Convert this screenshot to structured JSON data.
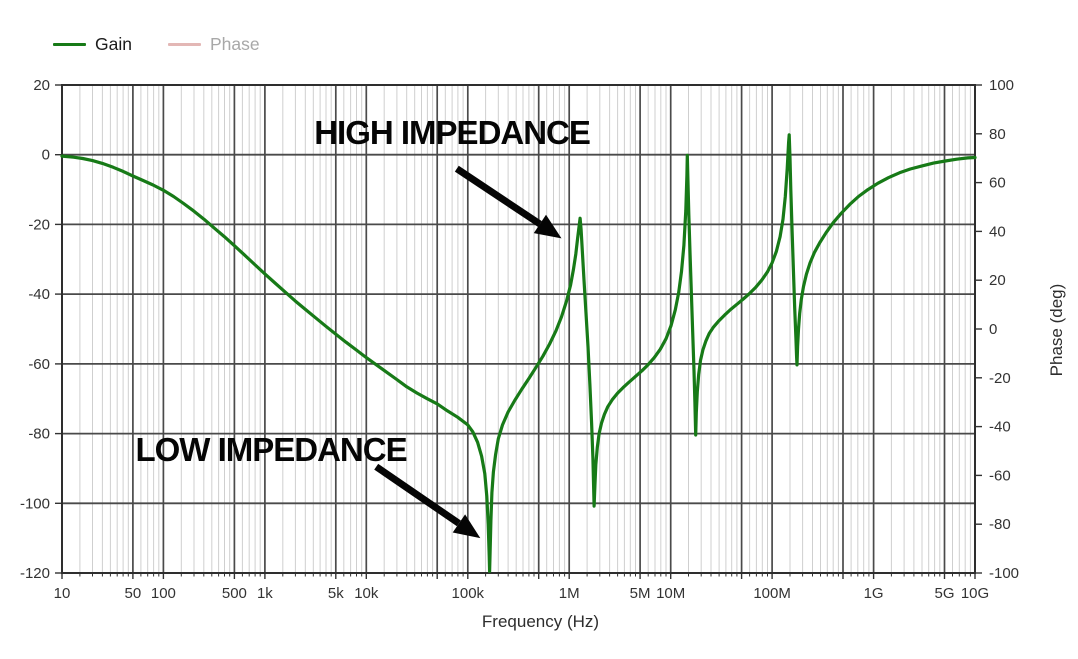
{
  "chart_data": {
    "type": "line",
    "title": "",
    "xlabel": "Frequency (Hz)",
    "ylabel_left": "",
    "ylabel_right": "Phase (deg)",
    "x_scale": "log",
    "xlim": [
      10,
      10000000000
    ],
    "ylim_gain_db": [
      -120,
      20
    ],
    "ylim_phase_deg": [
      -100,
      100
    ],
    "grid": "on",
    "legend": [
      {
        "label": "Gain",
        "color": "#177a17",
        "active": true
      },
      {
        "label": "Phase",
        "color": "#e3b7b5",
        "active": false
      }
    ],
    "legend_inactive_text_color": "#a8a8a8",
    "phase_axis_color": "#b25b52",
    "x_ticks": [
      {
        "v": 10,
        "label": "10"
      },
      {
        "v": 50,
        "label": "50"
      },
      {
        "v": 100,
        "label": "100"
      },
      {
        "v": 500,
        "label": "500"
      },
      {
        "v": 1000,
        "label": "1k"
      },
      {
        "v": 5000,
        "label": "5k"
      },
      {
        "v": 10000,
        "label": "10k"
      },
      {
        "v": 100000,
        "label": "100k"
      },
      {
        "v": 1000000,
        "label": "1M"
      },
      {
        "v": 5000000,
        "label": "5M"
      },
      {
        "v": 10000000,
        "label": "10M"
      },
      {
        "v": 100000000,
        "label": "100M"
      },
      {
        "v": 1000000000,
        "label": "1G"
      },
      {
        "v": 5000000000,
        "label": "5G"
      },
      {
        "v": 10000000000,
        "label": "10G"
      }
    ],
    "gain_ticks_db": [
      20,
      0,
      -20,
      -40,
      -60,
      -80,
      -100,
      -120
    ],
    "phase_ticks_deg": [
      100,
      80,
      60,
      40,
      20,
      0,
      -20,
      -40,
      -60,
      -80,
      -100
    ],
    "series": [
      {
        "name": "Gain",
        "color": "#177a17",
        "visible": true,
        "points_freq_db": [
          [
            10,
            -0.4
          ],
          [
            13,
            -0.7
          ],
          [
            16,
            -1.1
          ],
          [
            20,
            -1.7
          ],
          [
            25,
            -2.5
          ],
          [
            32,
            -3.6
          ],
          [
            40,
            -4.8
          ],
          [
            50,
            -6.1
          ],
          [
            63,
            -7.4
          ],
          [
            79,
            -8.7
          ],
          [
            100,
            -10.2
          ],
          [
            126,
            -12
          ],
          [
            158,
            -14
          ],
          [
            200,
            -16.2
          ],
          [
            251,
            -18.5
          ],
          [
            316,
            -21
          ],
          [
            398,
            -23.5
          ],
          [
            501,
            -26.1
          ],
          [
            631,
            -28.8
          ],
          [
            794,
            -31.5
          ],
          [
            1000,
            -34.2
          ],
          [
            1259,
            -36.8
          ],
          [
            1585,
            -39.4
          ],
          [
            2000,
            -42
          ],
          [
            2512,
            -44.4
          ],
          [
            3162,
            -46.8
          ],
          [
            3981,
            -49.2
          ],
          [
            5012,
            -51.5
          ],
          [
            6310,
            -53.8
          ],
          [
            7943,
            -56
          ],
          [
            10000,
            -58.2
          ],
          [
            12589,
            -60.3
          ],
          [
            15849,
            -62.4
          ],
          [
            19953,
            -64.5
          ],
          [
            25119,
            -66.6
          ],
          [
            31623,
            -68.4
          ],
          [
            39811,
            -70
          ],
          [
            50119,
            -71.5
          ],
          [
            63096,
            -73.5
          ],
          [
            79433,
            -75.3
          ],
          [
            100000,
            -77.5
          ],
          [
            112000,
            -79.5
          ],
          [
            125000,
            -82.5
          ],
          [
            137000,
            -86.5
          ],
          [
            147000,
            -91.5
          ],
          [
            154000,
            -98
          ],
          [
            159000,
            -106
          ],
          [
            162500,
            -115
          ],
          [
            164000,
            -119.5
          ],
          [
            166000,
            -114
          ],
          [
            169000,
            -105
          ],
          [
            173000,
            -97
          ],
          [
            179000,
            -91
          ],
          [
            188000,
            -86
          ],
          [
            200000,
            -81.5
          ],
          [
            220000,
            -77.5
          ],
          [
            250000,
            -73.8
          ],
          [
            290000,
            -70.5
          ],
          [
            340000,
            -67.3
          ],
          [
            400000,
            -64.2
          ],
          [
            470000,
            -61
          ],
          [
            550000,
            -57.8
          ],
          [
            640000,
            -54.3
          ],
          [
            740000,
            -50.5
          ],
          [
            840000,
            -46.5
          ],
          [
            940000,
            -42
          ],
          [
            1030000,
            -37.5
          ],
          [
            1100000,
            -33
          ],
          [
            1160000,
            -28.5
          ],
          [
            1210000,
            -24
          ],
          [
            1250000,
            -20.5
          ],
          [
            1280000,
            -18.2
          ],
          [
            1310000,
            -21.5
          ],
          [
            1350000,
            -28
          ],
          [
            1400000,
            -36
          ],
          [
            1460000,
            -45
          ],
          [
            1530000,
            -55
          ],
          [
            1600000,
            -66
          ],
          [
            1660000,
            -77
          ],
          [
            1710000,
            -87
          ],
          [
            1740000,
            -95
          ],
          [
            1760000,
            -100.8
          ],
          [
            1790000,
            -95
          ],
          [
            1830000,
            -89
          ],
          [
            1890000,
            -84
          ],
          [
            1970000,
            -80
          ],
          [
            2080000,
            -77
          ],
          [
            2220000,
            -74.5
          ],
          [
            2400000,
            -72.3
          ],
          [
            2650000,
            -70.3
          ],
          [
            3000000,
            -68.4
          ],
          [
            3400000,
            -66.8
          ],
          [
            3900000,
            -65.2
          ],
          [
            4500000,
            -63.6
          ],
          [
            5200000,
            -62
          ],
          [
            6000000,
            -60.2
          ],
          [
            6900000,
            -58.2
          ],
          [
            7900000,
            -55.8
          ],
          [
            9000000,
            -52.8
          ],
          [
            10100000,
            -49
          ],
          [
            11100000,
            -44.5
          ],
          [
            12000000,
            -39.5
          ],
          [
            12800000,
            -33.5
          ],
          [
            13500000,
            -26
          ],
          [
            14100000,
            -16
          ],
          [
            14450000,
            -6
          ],
          [
            14600000,
            -0.2
          ],
          [
            14800000,
            -7
          ],
          [
            15100000,
            -17
          ],
          [
            15500000,
            -28
          ],
          [
            16000000,
            -40
          ],
          [
            16500000,
            -51
          ],
          [
            17000000,
            -62
          ],
          [
            17350000,
            -71
          ],
          [
            17550000,
            -77
          ],
          [
            17650000,
            -80.4
          ],
          [
            17900000,
            -74
          ],
          [
            18300000,
            -68
          ],
          [
            18900000,
            -63
          ],
          [
            19700000,
            -59
          ],
          [
            20800000,
            -56
          ],
          [
            22200000,
            -53.5
          ],
          [
            24000000,
            -51.3
          ],
          [
            26500000,
            -49.4
          ],
          [
            30000000,
            -47.6
          ],
          [
            34000000,
            -46
          ],
          [
            39000000,
            -44.4
          ],
          [
            45000000,
            -42.9
          ],
          [
            52000000,
            -41.4
          ],
          [
            60000000,
            -39.8
          ],
          [
            69000000,
            -38
          ],
          [
            79000000,
            -36
          ],
          [
            90000000,
            -33.6
          ],
          [
            100000000,
            -31
          ],
          [
            110000000,
            -27.8
          ],
          [
            120000000,
            -23.5
          ],
          [
            128000000,
            -18.5
          ],
          [
            135000000,
            -12
          ],
          [
            141000000,
            -4
          ],
          [
            145500000,
            3.5
          ],
          [
            147500000,
            5.7
          ],
          [
            150000000,
            -1
          ],
          [
            153000000,
            -10
          ],
          [
            157000000,
            -21
          ],
          [
            162000000,
            -33
          ],
          [
            167000000,
            -44
          ],
          [
            171500000,
            -52.5
          ],
          [
            174500000,
            -58
          ],
          [
            176000000,
            -60.3
          ],
          [
            178500000,
            -55
          ],
          [
            182000000,
            -50
          ],
          [
            187000000,
            -45.5
          ],
          [
            194000000,
            -41.5
          ],
          [
            204000000,
            -37.8
          ],
          [
            218000000,
            -34.3
          ],
          [
            237000000,
            -31
          ],
          [
            262000000,
            -28
          ],
          [
            295000000,
            -25.2
          ],
          [
            340000000,
            -22.4
          ],
          [
            400000000,
            -19.5
          ],
          [
            480000000,
            -16.8
          ],
          [
            580000000,
            -14.3
          ],
          [
            710000000,
            -12
          ],
          [
            880000000,
            -10
          ],
          [
            1100000000,
            -8.2
          ],
          [
            1400000000,
            -6.6
          ],
          [
            1800000000,
            -5.2
          ],
          [
            2300000000,
            -4.1
          ],
          [
            3000000000,
            -3.2
          ],
          [
            3900000000,
            -2.4
          ],
          [
            5100000000,
            -1.8
          ],
          [
            6600000000,
            -1.3
          ],
          [
            8500000000,
            -0.9
          ],
          [
            10000000000,
            -0.8
          ]
        ]
      },
      {
        "name": "Phase",
        "color": "#e3b7b5",
        "visible": false,
        "points_freq_deg": []
      }
    ],
    "annotations": [
      {
        "text": "HIGH IMPEDANCE",
        "text_at": {
          "freq": 70000,
          "db": 6
        },
        "arrow": {
          "from": {
            "freq": 78000,
            "db": -4
          },
          "to": {
            "freq": 840000,
            "db": -24
          }
        }
      },
      {
        "text": "LOW IMPEDANCE",
        "text_at": {
          "freq": 1150,
          "db": -85
        },
        "arrow": {
          "from": {
            "freq": 12500,
            "db": -89.5
          },
          "to": {
            "freq": 133000,
            "db": -110
          }
        }
      }
    ]
  }
}
